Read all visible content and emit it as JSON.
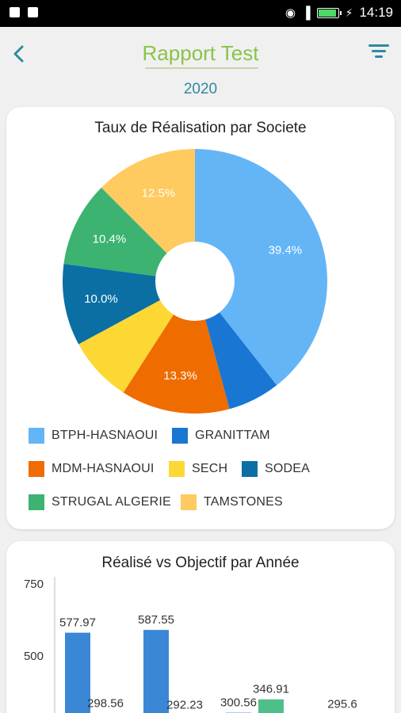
{
  "status_bar": {
    "time": "14:19"
  },
  "header": {
    "title": "Rapport Test",
    "year": "2020"
  },
  "pie_card": {
    "title": "Taux de Réalisation par Societe",
    "legend": [
      {
        "label": "BTPH-HASNAOUI",
        "color": "#64b5f6"
      },
      {
        "label": "GRANITTAM",
        "color": "#1976d2"
      },
      {
        "label": "MDM-HASNAOUI",
        "color": "#ef6c00"
      },
      {
        "label": "SECH",
        "color": "#fdd835"
      },
      {
        "label": "SODEA",
        "color": "#0b6fa4"
      },
      {
        "label": "STRUGAL ALGERIE",
        "color": "#3cb371"
      },
      {
        "label": "TAMSTONES",
        "color": "#ffca5f"
      }
    ]
  },
  "bar_card": {
    "title": "Réalisé vs Objectif par Année",
    "colors": {
      "realise": "#3a87d6",
      "objectif": "#4fbf8a"
    }
  },
  "chart_data": [
    {
      "type": "pie",
      "title": "Taux de Réalisation par Societe",
      "categories": [
        "BTPH-HASNAOUI",
        "GRANITTAM",
        "MDM-HASNAOUI",
        "SECH",
        "SODEA",
        "STRUGAL ALGERIE",
        "TAMSTONES"
      ],
      "values": [
        39.4,
        6.4,
        13.3,
        8.0,
        10.0,
        10.4,
        12.5
      ],
      "labels": [
        "39.4%",
        "",
        "13.3%",
        "",
        "10.0%",
        "10.4%",
        "12.5%"
      ],
      "legend": "bottom"
    },
    {
      "type": "bar",
      "title": "Réalisé vs Objectif par Année",
      "ylim": [
        0,
        750
      ],
      "yticks": [
        "750",
        "500"
      ],
      "bars": [
        {
          "value": 577.97,
          "label": "577.97",
          "color": "realise"
        },
        {
          "value": 298.56,
          "label": "298.56",
          "color": "realise"
        },
        {
          "value": 587.55,
          "label": "587.55",
          "color": "realise"
        },
        {
          "value": 292.23,
          "label": "292.23",
          "color": "realise"
        },
        {
          "value": 300.56,
          "label": "300.56",
          "color": "realise"
        },
        {
          "value": 346.91,
          "label": "346.91",
          "color": "objectif"
        },
        {
          "value": 295.6,
          "label": "295.6",
          "color": "realise"
        }
      ]
    }
  ]
}
